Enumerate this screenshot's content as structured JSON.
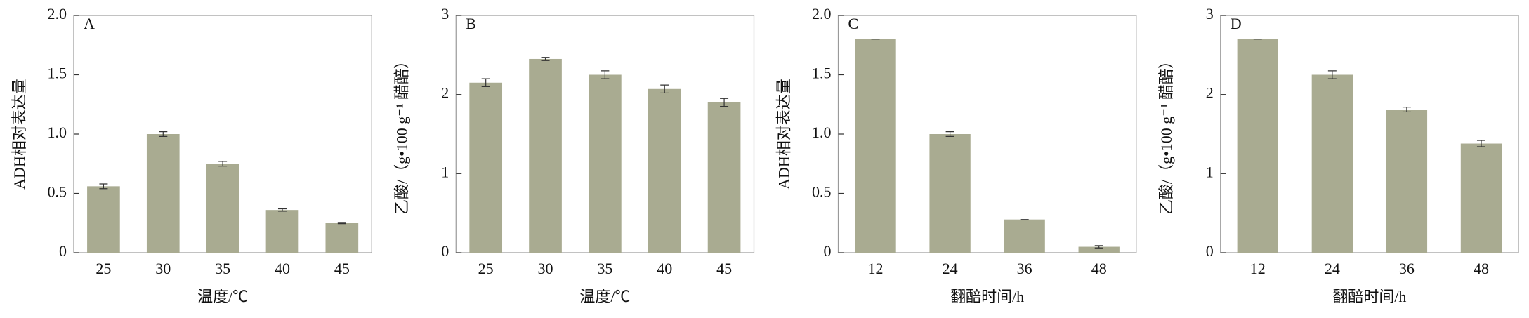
{
  "chart_data": [
    {
      "type": "bar",
      "title": "A",
      "ylabel": "ADH相对表达量",
      "xlabel": "温度/℃",
      "categories": [
        "25",
        "30",
        "35",
        "40",
        "45"
      ],
      "values": [
        0.56,
        1.0,
        0.75,
        0.36,
        0.25
      ],
      "errors": [
        0.02,
        0.02,
        0.02,
        0.01,
        0.005
      ],
      "color": "#a9ab91",
      "ylim": [
        0,
        2
      ],
      "yticks": [
        0,
        0.5,
        {
          "value": 1,
          "label": "1.0"
        },
        1.5,
        {
          "value": 2,
          "label": "2.0"
        }
      ]
    },
    {
      "type": "bar",
      "title": "B",
      "ylabel": "乙酸/（g•100 g⁻¹ 醋醅）",
      "xlabel": "温度/℃",
      "categories": [
        "25",
        "30",
        "35",
        "40",
        "45"
      ],
      "values": [
        2.15,
        2.45,
        2.25,
        2.07,
        1.9
      ],
      "errors": [
        0.05,
        0.02,
        0.05,
        0.05,
        0.05
      ],
      "color": "#a9ab91",
      "ylim": [
        0,
        3
      ],
      "yticks": [
        0,
        1,
        2,
        3
      ]
    },
    {
      "type": "bar",
      "title": "C",
      "ylabel": "ADH相对表达量",
      "xlabel": "翻醅时间/h",
      "categories": [
        "12",
        "24",
        "36",
        "48"
      ],
      "values": [
        1.8,
        1.0,
        0.28,
        0.05
      ],
      "errors": [
        0,
        0.02,
        0,
        0.01
      ],
      "color": "#a9ab91",
      "ylim": [
        0,
        2
      ],
      "yticks": [
        0,
        0.5,
        {
          "value": 1,
          "label": "1.0"
        },
        1.5,
        {
          "value": 2,
          "label": "2.0"
        }
      ]
    },
    {
      "type": "bar",
      "title": "D",
      "ylabel": "乙酸/（g•100 g⁻¹ 醋醅）",
      "xlabel": "翻醅时间/h",
      "categories": [
        "12",
        "24",
        "36",
        "48"
      ],
      "values": [
        2.7,
        2.25,
        1.81,
        1.38
      ],
      "errors": [
        0,
        0.05,
        0.03,
        0.04
      ],
      "color": "#a9ab91",
      "ylim": [
        0,
        3
      ],
      "yticks": [
        0,
        1,
        2,
        3
      ]
    }
  ]
}
